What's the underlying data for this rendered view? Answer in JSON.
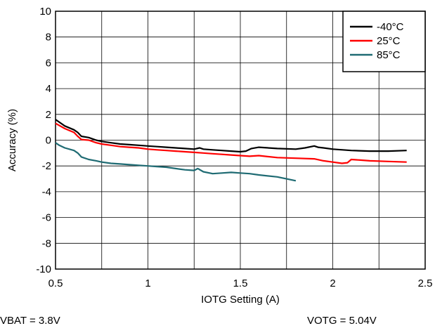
{
  "chart_data": {
    "type": "line",
    "title": "",
    "xlabel": "IOTG Setting (A)",
    "ylabel": "Accuracy (%)",
    "xlim": [
      0.5,
      2.5
    ],
    "ylim": [
      -10,
      10
    ],
    "xticks": [
      0.5,
      1,
      1.5,
      2,
      2.5
    ],
    "xtick_labels": [
      "0.5",
      "1",
      "1.5",
      "2",
      "2.5"
    ],
    "yticks": [
      -10,
      -8,
      -6,
      -4,
      -2,
      0,
      2,
      4,
      6,
      8,
      10
    ],
    "ytick_labels": [
      "-10",
      "-8",
      "-6",
      "-4",
      "-2",
      "0",
      "2",
      "4",
      "6",
      "8",
      "10"
    ],
    "grid": true,
    "legend_position": "top-right",
    "series": [
      {
        "name": "-40°C",
        "color": "#000000",
        "x": [
          0.5,
          0.55,
          0.6,
          0.62,
          0.64,
          0.68,
          0.72,
          0.75,
          0.8,
          0.85,
          0.9,
          0.95,
          1.0,
          1.05,
          1.1,
          1.15,
          1.2,
          1.25,
          1.28,
          1.3,
          1.35,
          1.4,
          1.45,
          1.5,
          1.53,
          1.56,
          1.6,
          1.7,
          1.8,
          1.85,
          1.9,
          1.92,
          1.95,
          2.0,
          2.1,
          2.2,
          2.3,
          2.4
        ],
        "y": [
          1.6,
          1.1,
          0.8,
          0.6,
          0.3,
          0.2,
          0.0,
          -0.1,
          -0.2,
          -0.3,
          -0.35,
          -0.4,
          -0.45,
          -0.5,
          -0.55,
          -0.6,
          -0.65,
          -0.7,
          -0.6,
          -0.7,
          -0.75,
          -0.8,
          -0.85,
          -0.9,
          -0.85,
          -0.65,
          -0.55,
          -0.65,
          -0.7,
          -0.6,
          -0.45,
          -0.55,
          -0.6,
          -0.7,
          -0.8,
          -0.85,
          -0.85,
          -0.8
        ]
      },
      {
        "name": "25°C",
        "color": "#ff0000",
        "x": [
          0.5,
          0.55,
          0.6,
          0.62,
          0.64,
          0.68,
          0.72,
          0.75,
          0.8,
          0.85,
          0.9,
          0.95,
          1.0,
          1.05,
          1.1,
          1.15,
          1.2,
          1.25,
          1.3,
          1.35,
          1.4,
          1.45,
          1.5,
          1.55,
          1.6,
          1.7,
          1.8,
          1.9,
          1.95,
          2.0,
          2.05,
          2.08,
          2.1,
          2.15,
          2.2,
          2.3,
          2.4
        ],
        "y": [
          1.3,
          0.9,
          0.6,
          0.3,
          0.05,
          0.0,
          -0.2,
          -0.3,
          -0.4,
          -0.5,
          -0.55,
          -0.6,
          -0.7,
          -0.75,
          -0.8,
          -0.85,
          -0.9,
          -0.95,
          -1.0,
          -1.05,
          -1.1,
          -1.15,
          -1.2,
          -1.25,
          -1.2,
          -1.35,
          -1.4,
          -1.45,
          -1.6,
          -1.7,
          -1.8,
          -1.75,
          -1.5,
          -1.55,
          -1.6,
          -1.65,
          -1.7
        ]
      },
      {
        "name": "85°C",
        "color": "#1f6b73",
        "x": [
          0.5,
          0.52,
          0.55,
          0.6,
          0.62,
          0.64,
          0.68,
          0.72,
          0.75,
          0.8,
          0.85,
          0.9,
          0.95,
          1.0,
          1.05,
          1.1,
          1.15,
          1.2,
          1.25,
          1.27,
          1.3,
          1.35,
          1.4,
          1.45,
          1.5,
          1.55,
          1.6,
          1.7,
          1.75,
          1.8
        ],
        "y": [
          -0.2,
          -0.4,
          -0.6,
          -0.8,
          -1.0,
          -1.3,
          -1.5,
          -1.6,
          -1.7,
          -1.8,
          -1.85,
          -1.9,
          -1.95,
          -2.0,
          -2.05,
          -2.1,
          -2.2,
          -2.3,
          -2.35,
          -2.2,
          -2.45,
          -2.6,
          -2.55,
          -2.5,
          -2.55,
          -2.6,
          -2.7,
          -2.85,
          -3.0,
          -3.15
        ]
      }
    ]
  },
  "notes": {
    "left": "VBAT = 3.8V",
    "right": "VOTG = 5.04V"
  }
}
